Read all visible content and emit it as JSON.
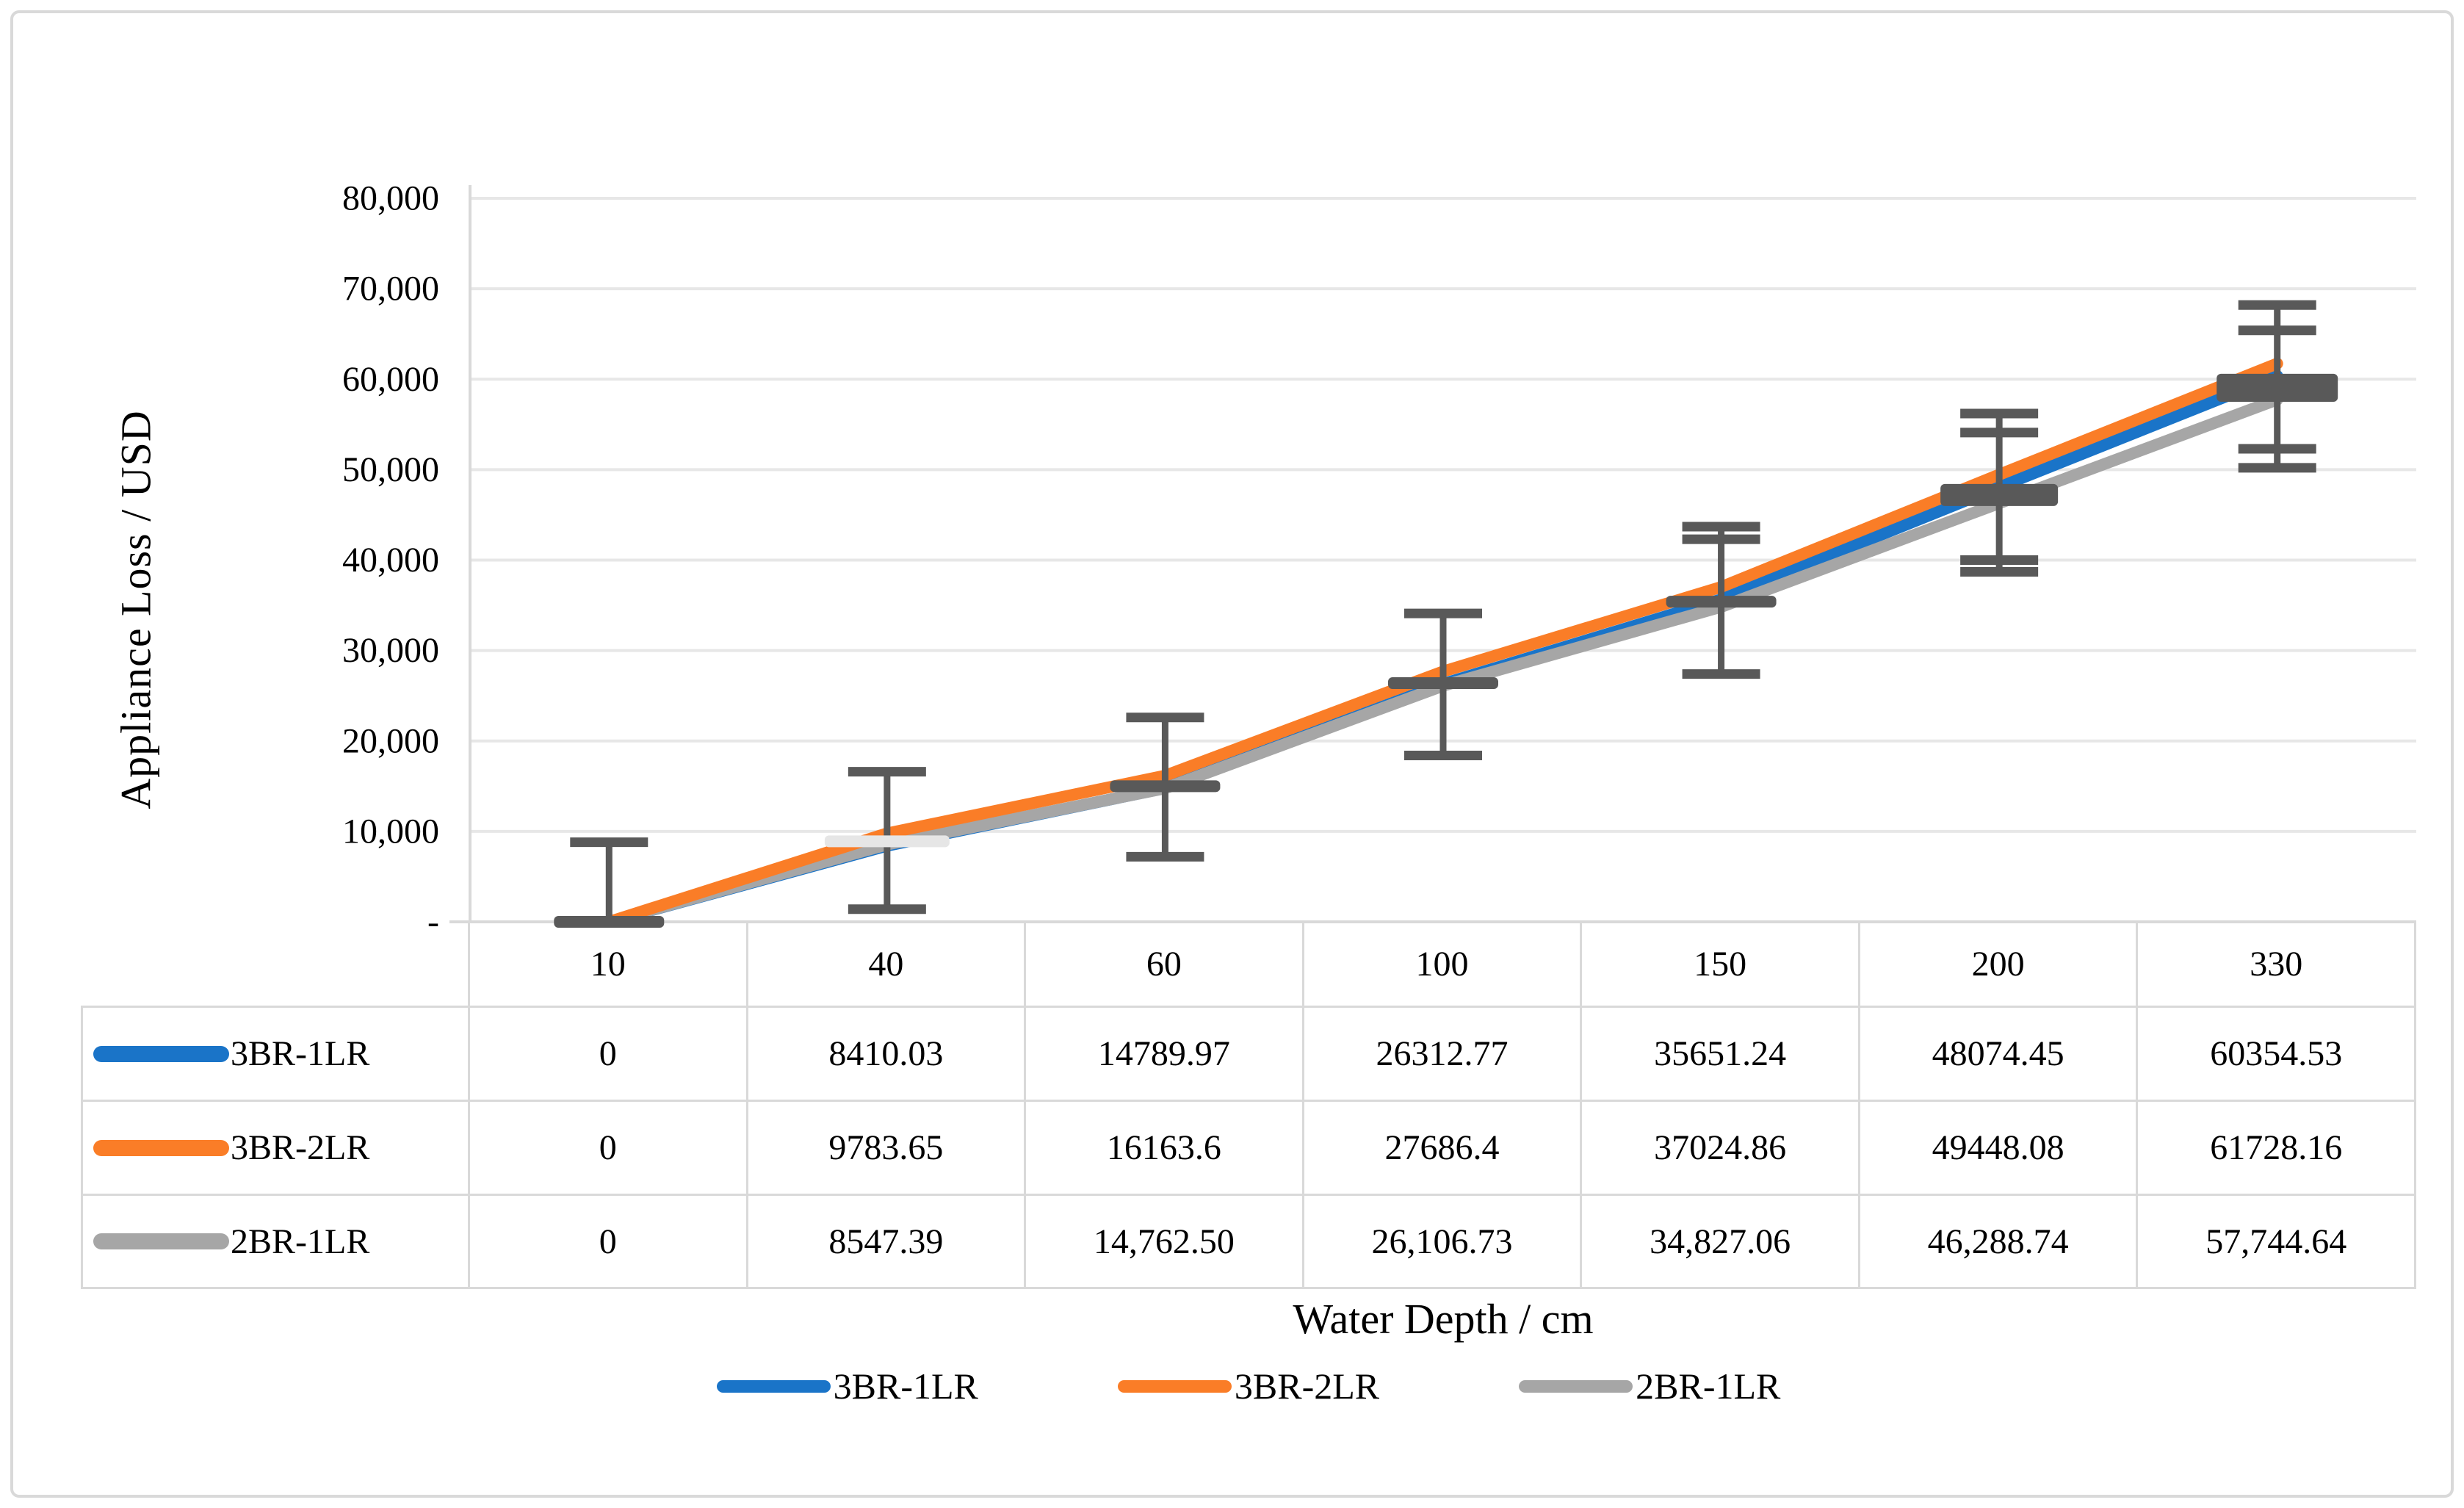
{
  "chart_data": {
    "type": "line",
    "title": "",
    "xlabel": "Water Depth / cm",
    "ylabel": "Appliance Loss / USD",
    "categories": [
      "10",
      "40",
      "60",
      "100",
      "150",
      "200",
      "330"
    ],
    "ylim": [
      0,
      80000
    ],
    "grid": true,
    "legend_position": "bottom",
    "y_ticks": [
      {
        "value": 80000,
        "label": "80,000"
      },
      {
        "value": 70000,
        "label": "70,000"
      },
      {
        "value": 60000,
        "label": "60,000"
      },
      {
        "value": 50000,
        "label": "50,000"
      },
      {
        "value": 40000,
        "label": "40,000"
      },
      {
        "value": 30000,
        "label": "30,000"
      },
      {
        "value": 20000,
        "label": "20,000"
      },
      {
        "value": 10000,
        "label": "10,000"
      },
      {
        "value": 0,
        "label": "-"
      }
    ],
    "series": [
      {
        "name": "3BR-1LR",
        "color": "#1A74C8",
        "values": [
          0,
          8410.03,
          14789.97,
          26312.77,
          35651.24,
          48074.45,
          60354.53
        ],
        "display": [
          "0",
          "8410.03",
          "14789.97",
          "26312.77",
          "35651.24",
          "48074.45",
          "60354.53"
        ]
      },
      {
        "name": "3BR-2LR",
        "color": "#FA7D27",
        "values": [
          0,
          9783.65,
          16163.6,
          27686.4,
          37024.86,
          49448.08,
          61728.16
        ],
        "display": [
          "0",
          "9783.65",
          "16163.6",
          "27686.4",
          "37024.86",
          "49448.08",
          "61728.16"
        ]
      },
      {
        "name": "2BR-1LR",
        "color": "#A6A6A6",
        "values": [
          0,
          8547.39,
          14762.5,
          26106.73,
          34827.06,
          46288.74,
          57744.64
        ],
        "display": [
          "0",
          "8547.39",
          "14,762.50",
          "26,106.73",
          "34,827.06",
          "46,288.74",
          "57,744.64"
        ]
      }
    ],
    "error_bars": {
      "color": "#595959",
      "points": [
        {
          "category": "10",
          "marker": 0,
          "marker_style": "dash",
          "high_caps": [
            8800
          ],
          "low_caps": []
        },
        {
          "category": "40",
          "marker": 8900,
          "marker_style": "light-dash",
          "high_caps": [
            16600
          ],
          "low_caps": [
            1400
          ]
        },
        {
          "category": "60",
          "marker": 15000,
          "marker_style": "dash",
          "high_caps": [
            22600
          ],
          "low_caps": [
            7200
          ]
        },
        {
          "category": "100",
          "marker": 26400,
          "marker_style": "dash",
          "high_caps": [
            34100
          ],
          "low_caps": [
            18400
          ]
        },
        {
          "category": "150",
          "marker": 35400,
          "marker_style": "dash",
          "high_caps": [
            43700,
            42300
          ],
          "low_caps": [
            27400
          ]
        },
        {
          "category": "200",
          "marker": 47200,
          "marker_style": "thick-dash",
          "high_caps": [
            56200,
            54100
          ],
          "low_caps": [
            40000,
            38700
          ]
        },
        {
          "category": "330",
          "marker": 59000,
          "marker_span": [
            57500,
            60600
          ],
          "marker_style": "block",
          "high_caps": [
            68200,
            65400
          ],
          "low_caps": [
            52300,
            50200
          ]
        }
      ]
    }
  },
  "colors": {
    "grid": "#E7E7E7",
    "axis": "#D9D9D9",
    "table_border": "#D9D9D9",
    "error_bar": "#595959",
    "light_marker": "#E6E6E6",
    "text": "#000000"
  }
}
